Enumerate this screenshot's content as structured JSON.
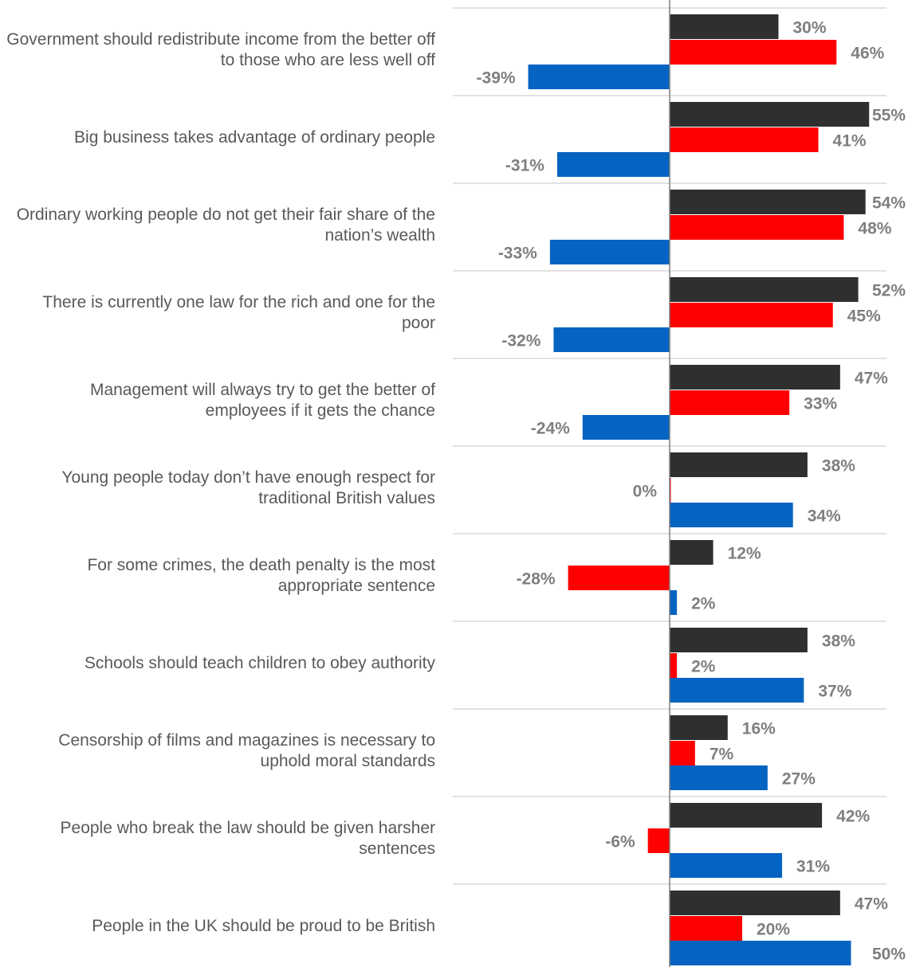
{
  "chart_data": {
    "type": "bar",
    "orientation": "horizontal",
    "categories": [
      "Government should redistribute income from the better off to those who are less well off",
      "Big business takes advantage of ordinary people",
      "Ordinary working people do not get their fair share of the nation’s wealth",
      "There is currently one law for the rich and one for the poor",
      "Management will always try to get the better of employees if it gets the chance",
      "Young people today don’t have enough respect for traditional British values",
      "For some crimes, the death penalty is the most appropriate sentence",
      "Schools should teach children to obey authority",
      "Censorship of films and magazines is necessary to uphold moral standards",
      "People who break the law should be given harsher sentences",
      "People in the UK should be proud to be British"
    ],
    "series": [
      {
        "color": "#2e3030",
        "values": [
          30,
          55,
          54,
          52,
          47,
          38,
          12,
          38,
          16,
          42,
          47
        ]
      },
      {
        "color": "#ff0000",
        "values": [
          46,
          41,
          48,
          45,
          33,
          0,
          -28,
          2,
          7,
          -6,
          20
        ]
      },
      {
        "color": "#0563c1",
        "values": [
          -39,
          -31,
          -33,
          -32,
          -24,
          34,
          2,
          37,
          27,
          31,
          50
        ]
      }
    ],
    "value_suffix": "%",
    "xlim": [
      -60,
      60
    ],
    "grid": false,
    "legend": "none"
  }
}
